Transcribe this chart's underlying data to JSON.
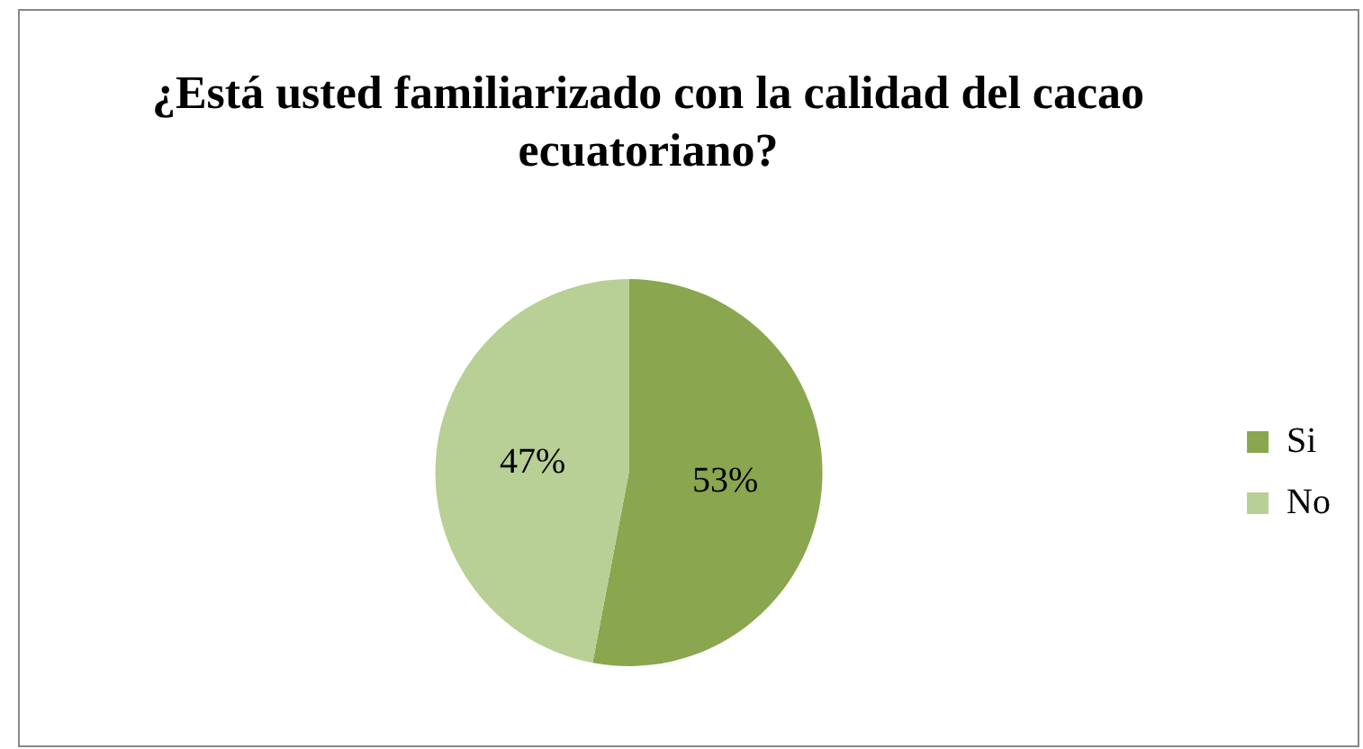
{
  "chart_data": {
    "type": "pie",
    "title": "¿Está usted familiarizado con la calidad del cacao ecuatoriano?",
    "categories": [
      "Si",
      "No"
    ],
    "values": [
      53,
      47
    ],
    "colors": [
      "#8aa64f",
      "#b8cf95"
    ],
    "value_labels": [
      "53%",
      "47%"
    ],
    "legend": "right"
  }
}
